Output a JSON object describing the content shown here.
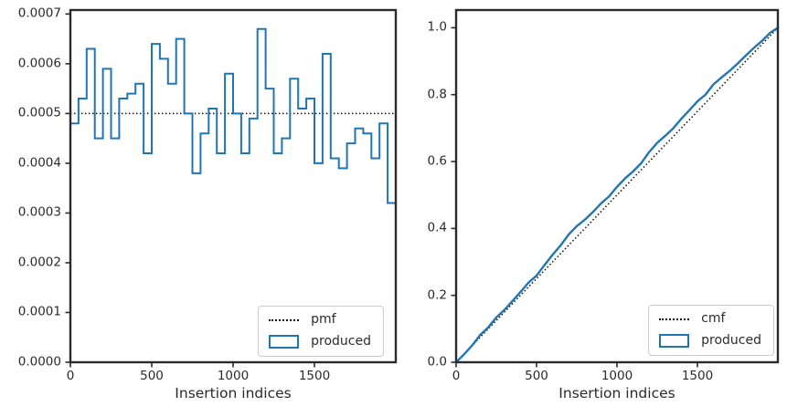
{
  "figure": {
    "background": "#ffffff"
  },
  "colors": {
    "accent_blue": "#2076b4",
    "foreground": "#2b2b2b",
    "dotted_line": "#000000",
    "legend_border": "#cccccc"
  },
  "chart_data": [
    {
      "id": "pmf-histogram",
      "type": "bar",
      "subtype": "step-histogram",
      "title": "",
      "xlabel": "Insertion indices",
      "ylabel": "",
      "grid": false,
      "legend_position": "lower right",
      "xlim": [
        0,
        2000
      ],
      "ylim": [
        0,
        0.000708
      ],
      "xticks": [
        0,
        500,
        1000,
        1500
      ],
      "xtick_labels": [
        "0",
        "500",
        "1000",
        "1500"
      ],
      "yticks": [
        0.0,
        0.0001,
        0.0002,
        0.0003,
        0.0004,
        0.0005,
        0.0006,
        0.0007
      ],
      "ytick_labels": [
        "0.0000",
        "0.0001",
        "0.0002",
        "0.0003",
        "0.0004",
        "0.0005",
        "0.0006",
        "0.0007"
      ],
      "pmf_level": 0.0005,
      "bin_start": 0,
      "bin_width": 50,
      "values": [
        0.00048,
        0.00053,
        0.00063,
        0.00045,
        0.00059,
        0.00045,
        0.00053,
        0.00054,
        0.00056,
        0.00042,
        0.00064,
        0.00061,
        0.00056,
        0.00065,
        0.0005,
        0.00038,
        0.00046,
        0.00051,
        0.00042,
        0.00058,
        0.0005,
        0.00042,
        0.00049,
        0.00067,
        0.00055,
        0.00042,
        0.00045,
        0.00057,
        0.00051,
        0.00053,
        0.0004,
        0.00062,
        0.00041,
        0.00039,
        0.00044,
        0.00047,
        0.00046,
        0.00041,
        0.00048,
        0.00032
      ],
      "legend": [
        {
          "label": "pmf",
          "style": "dotted-black-line"
        },
        {
          "label": "produced",
          "style": "blue-step-outline"
        }
      ]
    },
    {
      "id": "cmf-line",
      "type": "line",
      "title": "",
      "xlabel": "Insertion indices",
      "ylabel": "",
      "grid": false,
      "legend_position": "lower right",
      "xlim": [
        0,
        2000
      ],
      "ylim": [
        0,
        1.053
      ],
      "xticks": [
        0,
        500,
        1000,
        1500
      ],
      "xtick_labels": [
        "0",
        "500",
        "1000",
        "1500"
      ],
      "yticks": [
        0.0,
        0.2,
        0.4,
        0.6,
        0.8,
        1.0
      ],
      "ytick_labels": [
        "0.0",
        "0.2",
        "0.4",
        "0.6",
        "0.8",
        "1.0"
      ],
      "cmf_line": {
        "x": [
          0,
          2000
        ],
        "y": [
          0,
          1.0
        ]
      },
      "x": [
        0,
        50,
        100,
        150,
        200,
        250,
        300,
        350,
        400,
        450,
        500,
        550,
        600,
        650,
        700,
        750,
        800,
        850,
        900,
        950,
        1000,
        1050,
        1100,
        1150,
        1200,
        1250,
        1300,
        1350,
        1400,
        1450,
        1500,
        1550,
        1600,
        1650,
        1700,
        1750,
        1800,
        1850,
        1900,
        1950,
        2000
      ],
      "y": [
        0,
        0.024,
        0.0505,
        0.082,
        0.1045,
        0.134,
        0.1565,
        0.183,
        0.21,
        0.238,
        0.259,
        0.291,
        0.3215,
        0.3495,
        0.382,
        0.407,
        0.426,
        0.449,
        0.4745,
        0.4955,
        0.5245,
        0.5495,
        0.5705,
        0.595,
        0.6285,
        0.656,
        0.677,
        0.6995,
        0.728,
        0.7535,
        0.78,
        0.8,
        0.831,
        0.8515,
        0.871,
        0.893,
        0.9165,
        0.9395,
        0.96,
        0.984,
        1.0
      ],
      "legend": [
        {
          "label": "cmf",
          "style": "dotted-black-line"
        },
        {
          "label": "produced",
          "style": "blue-step-outline"
        }
      ]
    }
  ]
}
